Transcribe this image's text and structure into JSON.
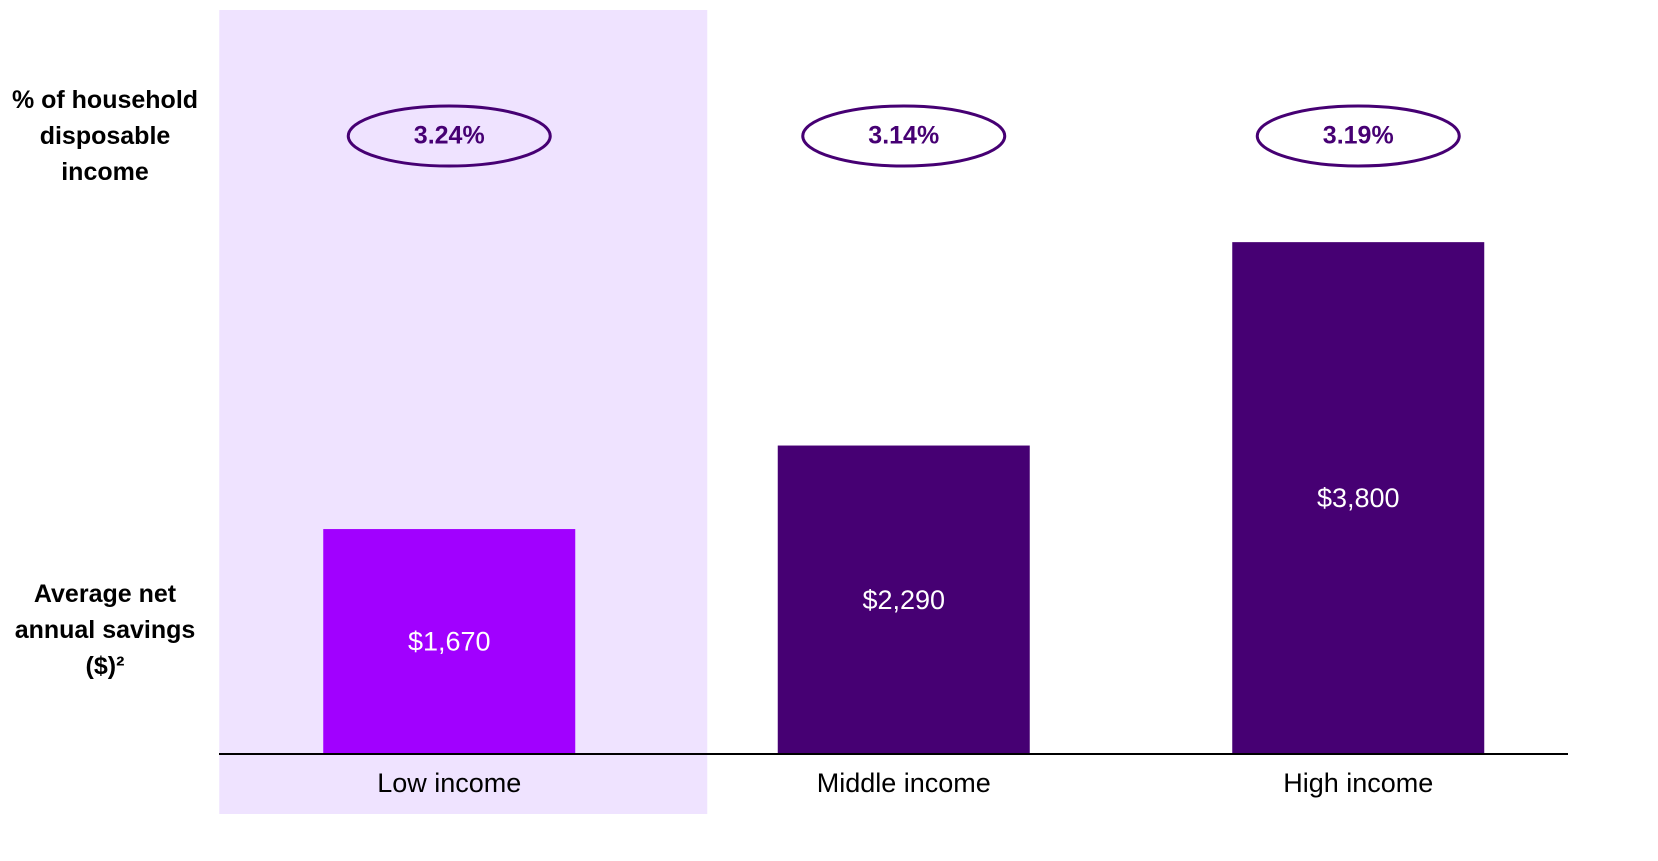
{
  "chart_data": {
    "type": "bar",
    "categories": [
      "Low income",
      "Middle income",
      "High income"
    ],
    "highlight": 0,
    "highlight_color": "#efe3ff",
    "series": [
      {
        "name": "Average net annual savings ($)²",
        "values": [
          1670,
          2290,
          3800
        ],
        "value_labels": [
          "$1,670",
          "$2,290",
          "$3,800"
        ],
        "colors": [
          "#a100ff",
          "#460073",
          "#460073"
        ]
      },
      {
        "name": "% of household disposable income",
        "values": [
          3.24,
          3.14,
          3.19
        ],
        "value_labels": [
          "3.24%",
          "3.14%",
          "3.19%"
        ],
        "color": "#460073"
      }
    ]
  }
}
